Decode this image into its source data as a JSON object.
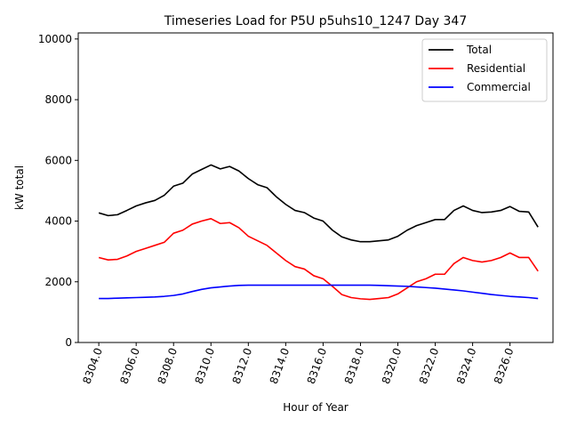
{
  "chart_data": {
    "type": "line",
    "title": "Timeseries Load for P5U p5uhs10_1247  Day 347",
    "xlabel": "Hour of Year",
    "ylabel": "kW total",
    "xlim": [
      8302.9,
      8328.3
    ],
    "ylim": [
      0,
      10200
    ],
    "xticks": [
      8304,
      8306,
      8308,
      8310,
      8312,
      8314,
      8316,
      8318,
      8320,
      8322,
      8324,
      8326
    ],
    "xtick_labels": [
      "8304.0",
      "8306.0",
      "8308.0",
      "8310.0",
      "8312.0",
      "8314.0",
      "8316.0",
      "8318.0",
      "8320.0",
      "8322.0",
      "8324.0",
      "8326.0"
    ],
    "yticks": [
      0,
      2000,
      4000,
      6000,
      8000,
      10000
    ],
    "ytick_labels": [
      "0",
      "2000",
      "4000",
      "6000",
      "8000",
      "10000"
    ],
    "legend_position": "top-right",
    "x": [
      8304.0,
      8304.5,
      8305.0,
      8305.5,
      8306.0,
      8306.5,
      8307.0,
      8307.5,
      8308.0,
      8308.5,
      8309.0,
      8309.5,
      8310.0,
      8310.5,
      8311.0,
      8311.5,
      8312.0,
      8312.5,
      8313.0,
      8313.5,
      8314.0,
      8314.5,
      8315.0,
      8315.5,
      8316.0,
      8316.5,
      8317.0,
      8317.5,
      8318.0,
      8318.5,
      8319.0,
      8319.5,
      8320.0,
      8320.5,
      8321.0,
      8321.5,
      8322.0,
      8322.5,
      8323.0,
      8323.5,
      8324.0,
      8324.5,
      8325.0,
      8325.5,
      8326.0,
      8326.5,
      8327.0,
      8327.5
    ],
    "series": [
      {
        "name": "Total",
        "color": "#000000",
        "values": [
          4270,
          4180,
          4210,
          4350,
          4500,
          4600,
          4680,
          4850,
          5150,
          5250,
          5550,
          5700,
          5850,
          5720,
          5800,
          5650,
          5400,
          5200,
          5100,
          4800,
          4550,
          4350,
          4280,
          4100,
          4000,
          3700,
          3480,
          3380,
          3320,
          3320,
          3350,
          3380,
          3500,
          3700,
          3850,
          3950,
          4050,
          4050,
          4350,
          4500,
          4350,
          4280,
          4300,
          4350,
          4480,
          4320,
          4300,
          3800
        ]
      },
      {
        "name": "Residential",
        "color": "#ff0000",
        "values": [
          2800,
          2720,
          2740,
          2850,
          3000,
          3100,
          3200,
          3300,
          3600,
          3700,
          3900,
          4000,
          4080,
          3920,
          3950,
          3780,
          3500,
          3350,
          3200,
          2950,
          2700,
          2500,
          2420,
          2200,
          2100,
          1850,
          1580,
          1480,
          1440,
          1420,
          1450,
          1480,
          1600,
          1800,
          2000,
          2100,
          2250,
          2250,
          2600,
          2800,
          2700,
          2650,
          2700,
          2800,
          2950,
          2800,
          2800,
          2350
        ]
      },
      {
        "name": "Commercial",
        "color": "#0000ff",
        "values": [
          1450,
          1450,
          1460,
          1470,
          1480,
          1490,
          1500,
          1520,
          1550,
          1600,
          1680,
          1750,
          1800,
          1830,
          1860,
          1880,
          1890,
          1890,
          1890,
          1890,
          1890,
          1890,
          1890,
          1890,
          1890,
          1890,
          1890,
          1890,
          1890,
          1890,
          1880,
          1870,
          1860,
          1850,
          1830,
          1810,
          1790,
          1760,
          1730,
          1700,
          1660,
          1620,
          1580,
          1550,
          1520,
          1500,
          1480,
          1450
        ]
      }
    ]
  }
}
